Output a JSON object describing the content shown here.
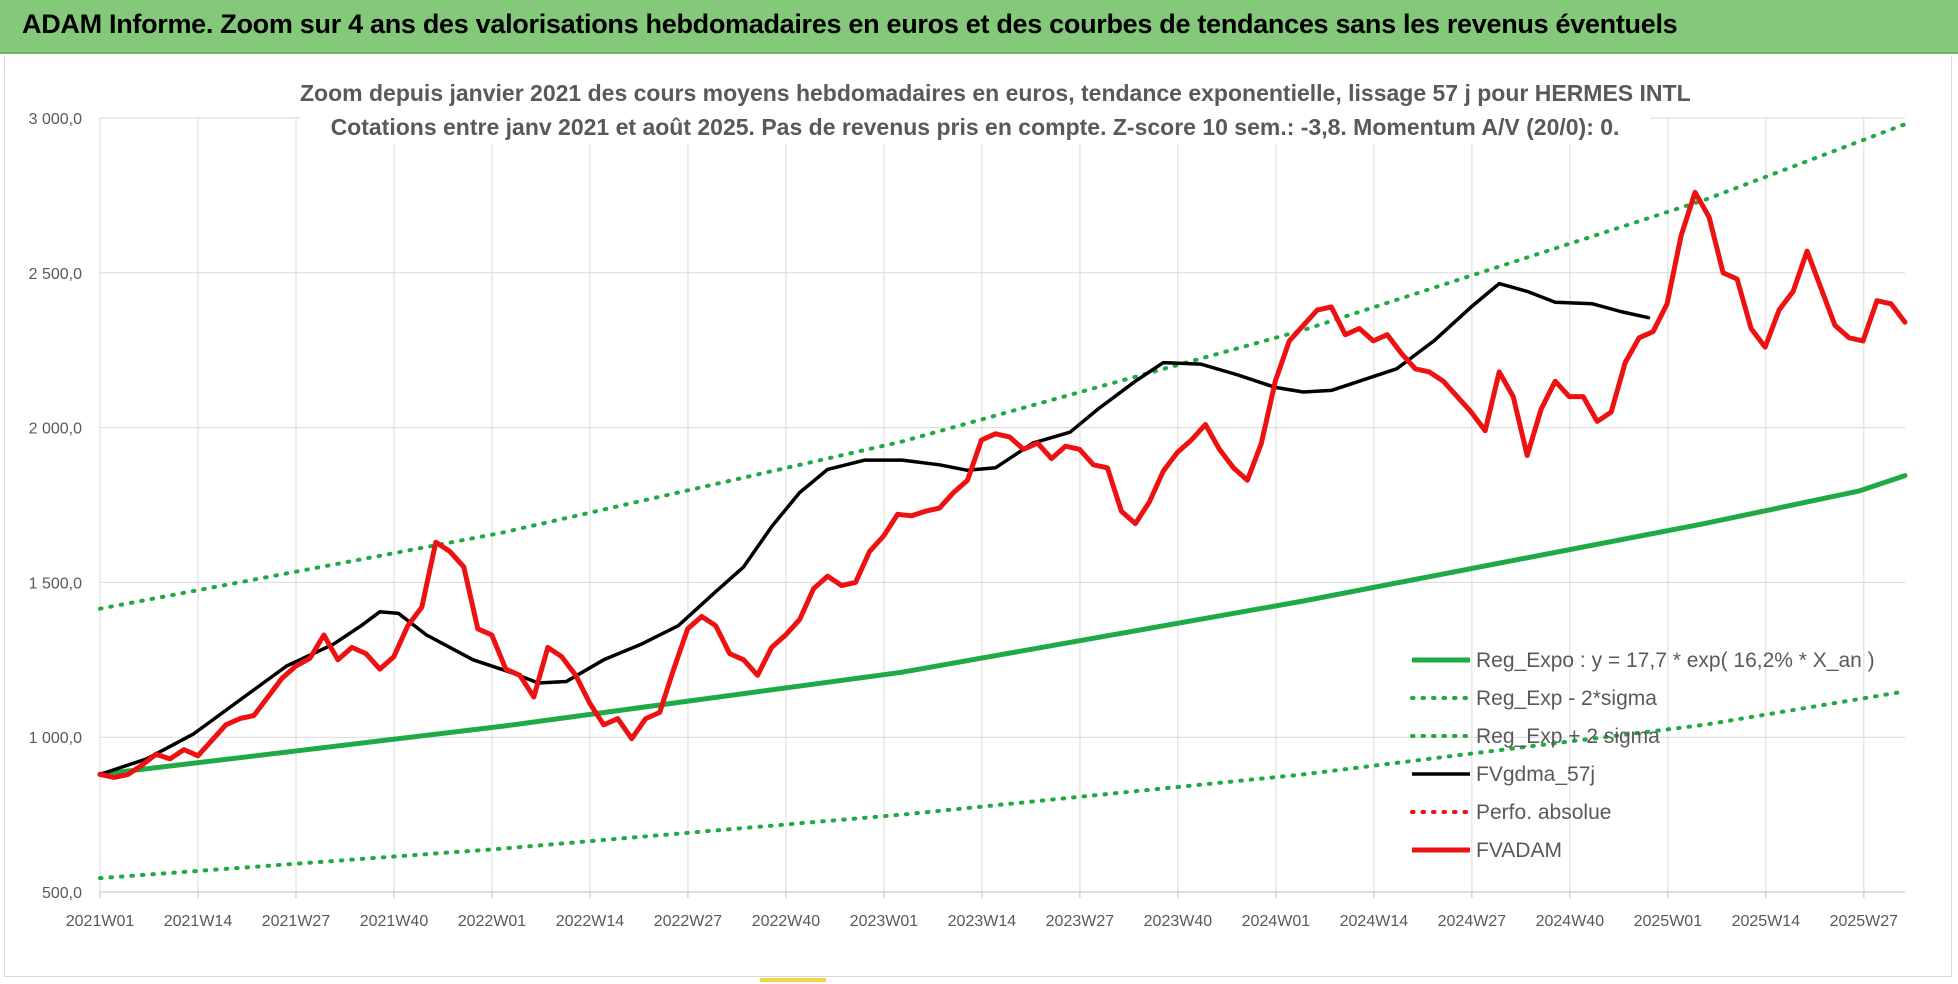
{
  "banner": {
    "title": "ADAM Informe. Zoom sur 4 ans des valorisations hebdomadaires en euros et des courbes de tendances sans les revenus éventuels"
  },
  "colors": {
    "banner_bg": "#84c97a",
    "trend_green": "#1faa46",
    "price_red": "#ee1111",
    "smooth_black": "#000000",
    "grid": "#d9d9d9",
    "text": "#595959"
  },
  "chart_data": {
    "type": "line",
    "title_lines": [
      "Zoom depuis janvier 2021 des cours moyens hebdomadaires en euros, tendance exponentielle, lissage 57 j pour HERMES INTL",
      "Cotations entre janv 2021 et août 2025.  Pas de revenus pris en compte. Z-score 10 sem.: -3,8. Momentum A/V (20/0): 0."
    ],
    "xlabel": "",
    "ylabel": "",
    "ylim": [
      500,
      3000
    ],
    "y_ticks": [
      "500,0",
      "1 000,0",
      "1 500,0",
      "2 000,0",
      "2 500,0",
      "3 000,0"
    ],
    "x_tick_labels": [
      "2021W01",
      "2021W14",
      "2021W27",
      "2021W40",
      "2022W01",
      "2022W14",
      "2022W27",
      "2022W40",
      "2023W01",
      "2023W14",
      "2023W27",
      "2023W40",
      "2024W01",
      "2024W14",
      "2024W27",
      "2024W40",
      "2025W01",
      "2025W14",
      "2025W27"
    ],
    "legend_position": "bottom-right",
    "grid": true,
    "series": [
      {
        "name": "Reg_Expo : y = 17,7 * exp( 16,2% *  X_an )",
        "style": "solid-thick",
        "color": "#1faa46",
        "points": [
          [
            0,
            880
          ],
          [
            52,
            1035
          ],
          [
            104,
            1210
          ],
          [
            156,
            1440
          ],
          [
            208,
            1690
          ],
          [
            228,
            1795
          ],
          [
            234,
            1845
          ]
        ]
      },
      {
        "name": "Reg_Exp - 2*sigma",
        "style": "dotted",
        "color": "#1faa46",
        "points": [
          [
            0,
            545
          ],
          [
            52,
            640
          ],
          [
            104,
            750
          ],
          [
            156,
            880
          ],
          [
            208,
            1040
          ],
          [
            234,
            1148
          ]
        ]
      },
      {
        "name": "Reg_Exp + 2 sigma",
        "style": "dotted",
        "color": "#1faa46",
        "points": [
          [
            0,
            1415
          ],
          [
            52,
            1660
          ],
          [
            104,
            1955
          ],
          [
            156,
            2315
          ],
          [
            208,
            2735
          ],
          [
            234,
            2980
          ]
        ]
      },
      {
        "name": "FVgdma_57j",
        "style": "solid",
        "color": "#000000",
        "points": [
          [
            0,
            880
          ],
          [
            10,
            930
          ],
          [
            20,
            1010
          ],
          [
            30,
            1120
          ],
          [
            40,
            1230
          ],
          [
            50,
            1300
          ],
          [
            56,
            1360
          ],
          [
            60,
            1405
          ],
          [
            64,
            1400
          ],
          [
            70,
            1330
          ],
          [
            80,
            1250
          ],
          [
            88,
            1210
          ],
          [
            94,
            1175
          ],
          [
            100,
            1180
          ],
          [
            108,
            1250
          ],
          [
            116,
            1300
          ],
          [
            124,
            1360
          ],
          [
            132,
            1470
          ],
          [
            138,
            1550
          ],
          [
            144,
            1680
          ],
          [
            150,
            1790
          ],
          [
            156,
            1865
          ],
          [
            164,
            1895
          ],
          [
            172,
            1895
          ],
          [
            180,
            1880
          ],
          [
            186,
            1862
          ],
          [
            192,
            1870
          ],
          [
            200,
            1950
          ],
          [
            208,
            1985
          ],
          [
            214,
            2060
          ],
          [
            222,
            2150
          ],
          [
            228,
            2210
          ],
          [
            236,
            2205
          ],
          [
            244,
            2170
          ],
          [
            252,
            2130
          ],
          [
            258,
            2115
          ],
          [
            264,
            2120
          ],
          [
            270,
            2150
          ],
          [
            278,
            2190
          ],
          [
            286,
            2280
          ],
          [
            294,
            2390
          ],
          [
            300,
            2465
          ],
          [
            306,
            2440
          ],
          [
            312,
            2405
          ],
          [
            320,
            2400
          ],
          [
            326,
            2375
          ],
          [
            332,
            2355
          ]
        ]
      },
      {
        "name": "Perfo. absolue",
        "style": "dotted",
        "color": "#ee1111",
        "points": []
      },
      {
        "name": "FVADAM",
        "style": "solid-thick",
        "color": "#ee1111",
        "points": [
          [
            0,
            880
          ],
          [
            3,
            870
          ],
          [
            6,
            880
          ],
          [
            9,
            910
          ],
          [
            12,
            945
          ],
          [
            15,
            930
          ],
          [
            18,
            960
          ],
          [
            21,
            940
          ],
          [
            24,
            990
          ],
          [
            27,
            1040
          ],
          [
            30,
            1060
          ],
          [
            33,
            1070
          ],
          [
            36,
            1130
          ],
          [
            39,
            1190
          ],
          [
            42,
            1230
          ],
          [
            45,
            1255
          ],
          [
            48,
            1330
          ],
          [
            51,
            1250
          ],
          [
            54,
            1290
          ],
          [
            57,
            1270
          ],
          [
            60,
            1220
          ],
          [
            63,
            1260
          ],
          [
            66,
            1360
          ],
          [
            69,
            1420
          ],
          [
            72,
            1630
          ],
          [
            75,
            1600
          ],
          [
            78,
            1550
          ],
          [
            81,
            1350
          ],
          [
            84,
            1330
          ],
          [
            87,
            1220
          ],
          [
            90,
            1200
          ],
          [
            93,
            1130
          ],
          [
            96,
            1290
          ],
          [
            99,
            1260
          ],
          [
            102,
            1200
          ],
          [
            105,
            1110
          ],
          [
            108,
            1040
          ],
          [
            111,
            1060
          ],
          [
            114,
            995
          ],
          [
            117,
            1060
          ],
          [
            120,
            1080
          ],
          [
            123,
            1220
          ],
          [
            126,
            1350
          ],
          [
            129,
            1390
          ],
          [
            132,
            1360
          ],
          [
            135,
            1270
          ],
          [
            138,
            1250
          ],
          [
            141,
            1200
          ],
          [
            144,
            1290
          ],
          [
            147,
            1330
          ],
          [
            150,
            1380
          ],
          [
            153,
            1480
          ],
          [
            156,
            1520
          ],
          [
            159,
            1490
          ],
          [
            162,
            1500
          ],
          [
            165,
            1600
          ],
          [
            168,
            1650
          ],
          [
            171,
            1720
          ],
          [
            174,
            1715
          ],
          [
            177,
            1730
          ],
          [
            180,
            1740
          ],
          [
            183,
            1790
          ],
          [
            186,
            1830
          ],
          [
            189,
            1960
          ],
          [
            192,
            1980
          ],
          [
            195,
            1970
          ],
          [
            198,
            1930
          ],
          [
            201,
            1950
          ],
          [
            204,
            1900
          ],
          [
            207,
            1940
          ],
          [
            210,
            1930
          ],
          [
            213,
            1880
          ],
          [
            216,
            1870
          ],
          [
            219,
            1730
          ],
          [
            222,
            1690
          ],
          [
            225,
            1760
          ],
          [
            228,
            1860
          ],
          [
            231,
            1920
          ],
          [
            234,
            1960
          ],
          [
            237,
            2010
          ],
          [
            240,
            1930
          ],
          [
            243,
            1870
          ],
          [
            246,
            1830
          ],
          [
            249,
            1950
          ],
          [
            252,
            2150
          ],
          [
            255,
            2280
          ],
          [
            258,
            2330
          ],
          [
            261,
            2380
          ],
          [
            264,
            2390
          ],
          [
            267,
            2300
          ],
          [
            270,
            2320
          ],
          [
            273,
            2280
          ],
          [
            276,
            2300
          ],
          [
            279,
            2240
          ],
          [
            282,
            2190
          ],
          [
            285,
            2180
          ],
          [
            288,
            2150
          ],
          [
            291,
            2100
          ],
          [
            294,
            2050
          ],
          [
            297,
            1990
          ],
          [
            300,
            2180
          ],
          [
            303,
            2100
          ],
          [
            306,
            1910
          ],
          [
            309,
            2060
          ],
          [
            312,
            2150
          ],
          [
            315,
            2100
          ],
          [
            318,
            2100
          ],
          [
            321,
            2020
          ],
          [
            324,
            2050
          ],
          [
            327,
            2210
          ],
          [
            330,
            2290
          ],
          [
            333,
            2310
          ],
          [
            336,
            2400
          ],
          [
            339,
            2620
          ],
          [
            342,
            2760
          ],
          [
            345,
            2680
          ],
          [
            348,
            2500
          ],
          [
            351,
            2480
          ],
          [
            354,
            2320
          ],
          [
            357,
            2260
          ],
          [
            360,
            2380
          ],
          [
            363,
            2440
          ],
          [
            366,
            2570
          ],
          [
            369,
            2450
          ],
          [
            372,
            2330
          ],
          [
            375,
            2290
          ],
          [
            378,
            2280
          ],
          [
            381,
            2410
          ],
          [
            384,
            2400
          ],
          [
            387,
            2340
          ]
        ]
      }
    ]
  }
}
